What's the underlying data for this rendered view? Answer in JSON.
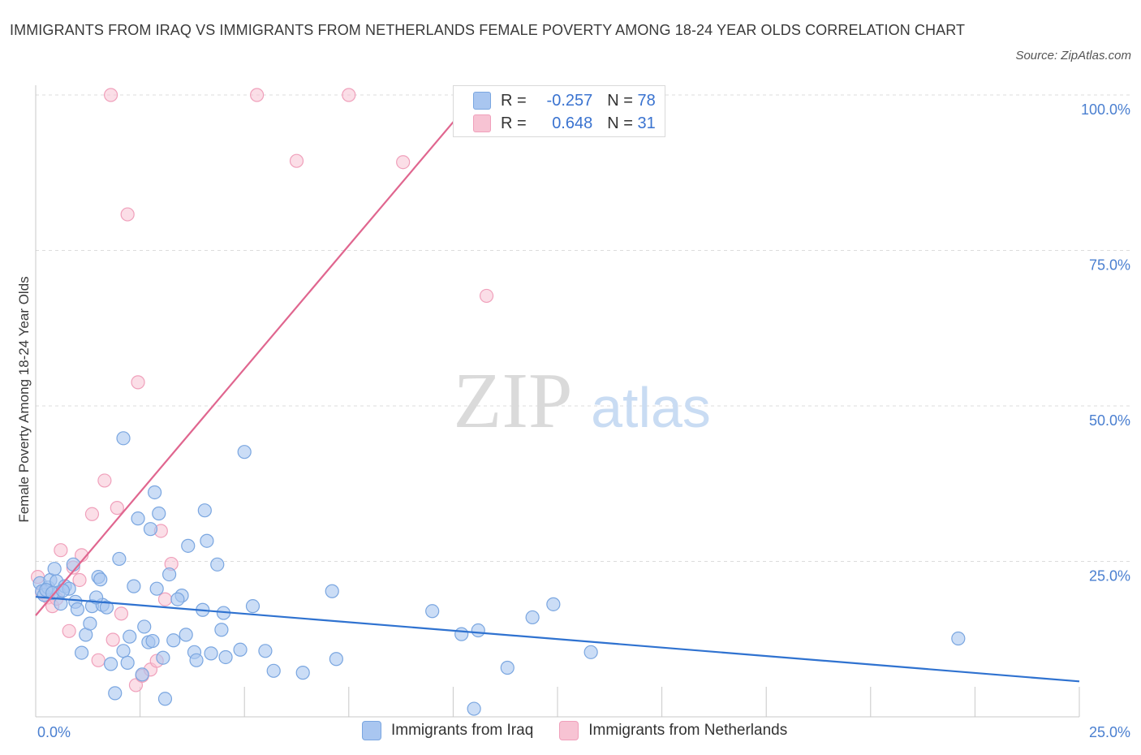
{
  "title": "IMMIGRANTS FROM IRAQ VS IMMIGRANTS FROM NETHERLANDS FEMALE POVERTY AMONG 18-24 YEAR OLDS CORRELATION CHART",
  "source": "Source: ZipAtlas.com",
  "watermark": {
    "zip": "ZIP",
    "atlas": "atlas"
  },
  "legend": {
    "iraq": {
      "r_label": "R =",
      "r_value": "-0.257",
      "n_label": "N =",
      "n_value": "78"
    },
    "netherlands": {
      "r_label": "R =",
      "r_value": "0.648",
      "n_label": "N =",
      "n_value": "31"
    }
  },
  "bottom_legend": {
    "iraq": "Immigrants from Iraq",
    "netherlands": "Immigrants from Netherlands"
  },
  "colors": {
    "iraq_fill": "#a9c6f0",
    "iraq_stroke": "#7aa6e0",
    "iraq_line": "#2f72d0",
    "nl_fill": "#f7c3d3",
    "nl_stroke": "#f0a0bb",
    "nl_line": "#e0668f",
    "tick": "#4a7fd0"
  },
  "chart_data": {
    "type": "scatter",
    "title": "IMMIGRANTS FROM IRAQ VS IMMIGRANTS FROM NETHERLANDS FEMALE POVERTY AMONG 18-24 YEAR OLDS CORRELATION CHART",
    "xlabel": "",
    "ylabel": "Female Poverty Among 18-24 Year Olds",
    "xlim": [
      0,
      25
    ],
    "ylim": [
      0,
      100
    ],
    "x_tick_labels": [
      "0.0%",
      "25.0%"
    ],
    "y_tick_labels": [
      "25.0%",
      "50.0%",
      "75.0%",
      "100.0%"
    ],
    "y_ticks": [
      25,
      50,
      75,
      100
    ],
    "grid": true,
    "legend_position": "top-center",
    "series": [
      {
        "name": "Immigrants from Iraq",
        "r": -0.257,
        "n": 78,
        "trend": {
          "x": [
            0,
            25
          ],
          "y": [
            19.3,
            5.7
          ]
        },
        "points": [
          [
            0.1,
            21.5
          ],
          [
            0.15,
            20.2
          ],
          [
            0.2,
            19.6
          ],
          [
            0.3,
            20.8
          ],
          [
            0.35,
            22.0
          ],
          [
            0.45,
            23.8
          ],
          [
            0.5,
            21.8
          ],
          [
            0.55,
            20.0
          ],
          [
            0.6,
            18.2
          ],
          [
            0.7,
            21.0
          ],
          [
            0.8,
            20.6
          ],
          [
            0.9,
            24.5
          ],
          [
            0.95,
            18.5
          ],
          [
            1.0,
            17.3
          ],
          [
            1.1,
            10.3
          ],
          [
            1.2,
            13.2
          ],
          [
            1.3,
            15.0
          ],
          [
            1.35,
            17.8
          ],
          [
            1.5,
            22.5
          ],
          [
            1.55,
            22.1
          ],
          [
            1.6,
            18.0
          ],
          [
            1.7,
            17.6
          ],
          [
            1.8,
            8.5
          ],
          [
            1.9,
            3.8
          ],
          [
            2.0,
            25.4
          ],
          [
            2.1,
            10.6
          ],
          [
            2.2,
            8.7
          ],
          [
            2.25,
            12.9
          ],
          [
            2.35,
            21.0
          ],
          [
            2.45,
            31.9
          ],
          [
            2.55,
            6.8
          ],
          [
            2.6,
            14.5
          ],
          [
            2.7,
            12.0
          ],
          [
            2.75,
            30.2
          ],
          [
            2.8,
            12.2
          ],
          [
            2.85,
            36.1
          ],
          [
            2.95,
            32.7
          ],
          [
            3.05,
            9.5
          ],
          [
            3.1,
            2.9
          ],
          [
            3.2,
            22.9
          ],
          [
            3.3,
            12.3
          ],
          [
            3.5,
            19.5
          ],
          [
            3.6,
            13.2
          ],
          [
            3.65,
            27.5
          ],
          [
            3.8,
            10.4
          ],
          [
            3.85,
            9.1
          ],
          [
            4.0,
            17.2
          ],
          [
            4.05,
            33.2
          ],
          [
            4.1,
            28.3
          ],
          [
            4.2,
            10.2
          ],
          [
            4.35,
            24.5
          ],
          [
            4.45,
            14.0
          ],
          [
            4.5,
            16.7
          ],
          [
            4.55,
            9.6
          ],
          [
            4.9,
            10.8
          ],
          [
            5.0,
            42.6
          ],
          [
            5.2,
            17.8
          ],
          [
            5.5,
            10.6
          ],
          [
            5.7,
            7.4
          ],
          [
            6.4,
            7.1
          ],
          [
            7.1,
            20.2
          ],
          [
            7.2,
            9.3
          ],
          [
            9.5,
            17.0
          ],
          [
            10.2,
            13.3
          ],
          [
            10.5,
            1.3
          ],
          [
            10.6,
            13.9
          ],
          [
            11.3,
            7.9
          ],
          [
            11.9,
            16.0
          ],
          [
            12.4,
            18.1
          ],
          [
            13.3,
            10.4
          ],
          [
            22.1,
            12.6
          ],
          [
            2.1,
            44.8
          ],
          [
            0.25,
            20.4
          ],
          [
            0.4,
            19.9
          ],
          [
            1.45,
            19.2
          ],
          [
            2.9,
            20.6
          ],
          [
            3.4,
            18.9
          ],
          [
            0.65,
            20.3
          ]
        ]
      },
      {
        "name": "Immigrants from Netherlands",
        "r": 0.648,
        "n": 31,
        "trend": {
          "x": [
            0,
            10.55
          ],
          "y": [
            16.3,
            100
          ]
        },
        "points": [
          [
            0.05,
            22.5
          ],
          [
            0.15,
            20.0
          ],
          [
            0.3,
            19.2
          ],
          [
            0.4,
            17.8
          ],
          [
            0.6,
            26.8
          ],
          [
            0.8,
            13.8
          ],
          [
            0.9,
            24.0
          ],
          [
            1.05,
            22.0
          ],
          [
            1.1,
            26.0
          ],
          [
            1.35,
            32.6
          ],
          [
            1.5,
            9.1
          ],
          [
            1.65,
            38.0
          ],
          [
            1.85,
            12.4
          ],
          [
            1.95,
            33.6
          ],
          [
            2.05,
            16.6
          ],
          [
            2.2,
            80.8
          ],
          [
            2.4,
            5.1
          ],
          [
            2.45,
            53.8
          ],
          [
            2.55,
            6.6
          ],
          [
            2.75,
            7.6
          ],
          [
            2.9,
            9.0
          ],
          [
            3.0,
            29.9
          ],
          [
            3.1,
            18.9
          ],
          [
            3.25,
            24.6
          ],
          [
            6.25,
            89.4
          ],
          [
            8.8,
            89.2
          ],
          [
            10.8,
            67.7
          ],
          [
            1.8,
            100
          ],
          [
            5.3,
            100
          ],
          [
            7.5,
            100
          ],
          [
            0.5,
            19.0
          ]
        ]
      }
    ]
  }
}
